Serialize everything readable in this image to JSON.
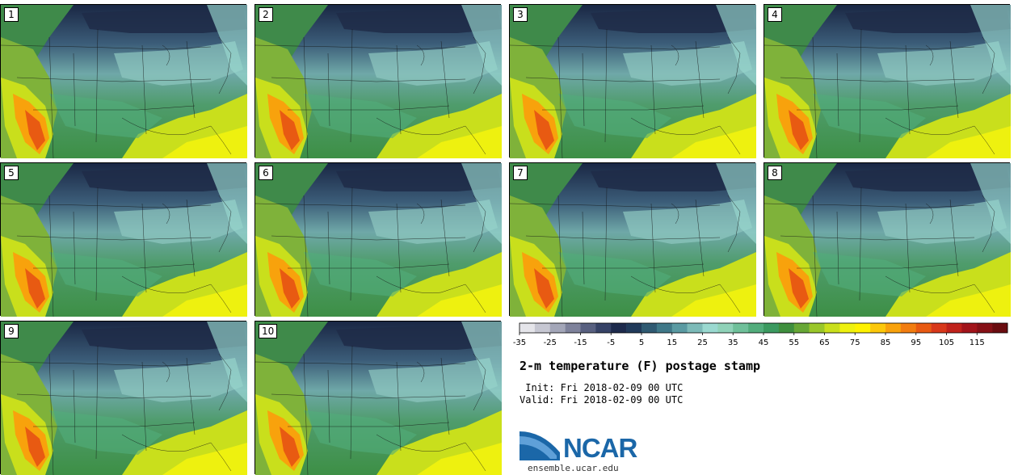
{
  "panels": [
    "1",
    "2",
    "3",
    "4",
    "5",
    "6",
    "7",
    "8",
    "9",
    "10"
  ],
  "colorbar": {
    "tick_labels": [
      "-35",
      "-25",
      "-15",
      "-5",
      "5",
      "15",
      "25",
      "35",
      "45",
      "55",
      "65",
      "75",
      "85",
      "95",
      "105",
      "115"
    ],
    "colors": [
      "#e5e5ea",
      "#c6c7d2",
      "#a3a6b8",
      "#7e829b",
      "#586080",
      "#364266",
      "#1d2a4c",
      "#203a5a",
      "#2f5a72",
      "#3f7888",
      "#5a9aa2",
      "#7cbab8",
      "#9ad9d0",
      "#8fd2b8",
      "#6fc09a",
      "#52ad7c",
      "#3b9a60",
      "#3f8f3e",
      "#67a736",
      "#9ac72a",
      "#c9df1c",
      "#eef10f",
      "#fef200",
      "#fcc80a",
      "#f8a20c",
      "#f27d10",
      "#e85a12",
      "#d8381a",
      "#c0221b",
      "#a2141a",
      "#861016",
      "#6a0c10"
    ]
  },
  "title": "2-m temperature (F) postage stamp",
  "init_text": " Init: Fri 2018-02-09 00 UTC",
  "valid_text": "Valid: Fri 2018-02-09 00 UTC",
  "logo_text": "NCAR",
  "logo_url": "ensemble.ucar.edu"
}
